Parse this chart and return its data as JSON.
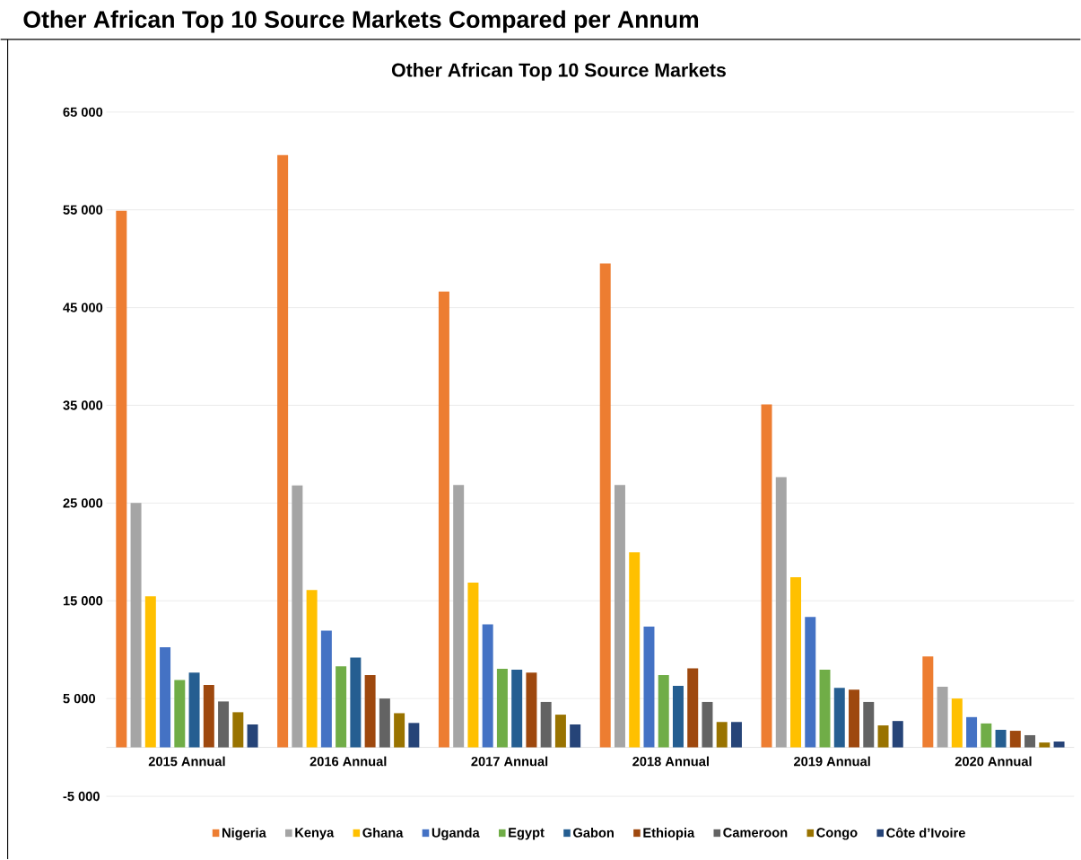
{
  "chart_data": {
    "type": "bar",
    "title": "Other African Top 10 Source Markets Compared per Annum",
    "subtitle": "Other African Top 10 Source Markets",
    "categories": [
      "2015 Annual",
      "2016 Annual",
      "2017 Annual",
      "2018 Annual",
      "2019 Annual",
      "2020 Annual"
    ],
    "series": [
      {
        "name": "Nigeria",
        "color": "#ed7d31",
        "values": [
          54900,
          60600,
          46650,
          49500,
          35100,
          9300
        ]
      },
      {
        "name": "Kenya",
        "color": "#a5a5a5",
        "values": [
          25000,
          26800,
          26850,
          26850,
          27650,
          6200
        ]
      },
      {
        "name": "Ghana",
        "color": "#ffc000",
        "values": [
          15450,
          16100,
          16850,
          19950,
          17400,
          5000
        ]
      },
      {
        "name": "Uganda",
        "color": "#4472c4",
        "values": [
          10250,
          11950,
          12600,
          12350,
          13350,
          3100
        ]
      },
      {
        "name": "Egypt",
        "color": "#70ad47",
        "values": [
          6900,
          8300,
          8050,
          7400,
          7950,
          2450
        ]
      },
      {
        "name": "Gabon",
        "color": "#255e91",
        "values": [
          7650,
          9200,
          7950,
          6300,
          6100,
          1800
        ]
      },
      {
        "name": "Ethiopia",
        "color": "#9e480e",
        "values": [
          6400,
          7400,
          7650,
          8100,
          5900,
          1700
        ]
      },
      {
        "name": "Cameroon",
        "color": "#636363",
        "values": [
          4700,
          5000,
          4650,
          4650,
          4650,
          1250
        ]
      },
      {
        "name": "Congo",
        "color": "#997300",
        "values": [
          3600,
          3500,
          3350,
          2600,
          2250,
          500
        ]
      },
      {
        "name": "Côte d’Ivoire",
        "color": "#264478",
        "values": [
          2350,
          2500,
          2350,
          2600,
          2700,
          600
        ]
      }
    ],
    "ylim": [
      -5000,
      65000
    ],
    "yticks": [
      {
        "value": -5000,
        "label": "-5 000"
      },
      {
        "value": 5000,
        "label": "5 000"
      },
      {
        "value": 15000,
        "label": "15 000"
      },
      {
        "value": 25000,
        "label": "25 000"
      },
      {
        "value": 35000,
        "label": "35 000"
      },
      {
        "value": 45000,
        "label": "45 000"
      },
      {
        "value": 55000,
        "label": "55 000"
      },
      {
        "value": 65000,
        "label": "65 000"
      }
    ],
    "grid": "y",
    "legend": "bottom"
  }
}
